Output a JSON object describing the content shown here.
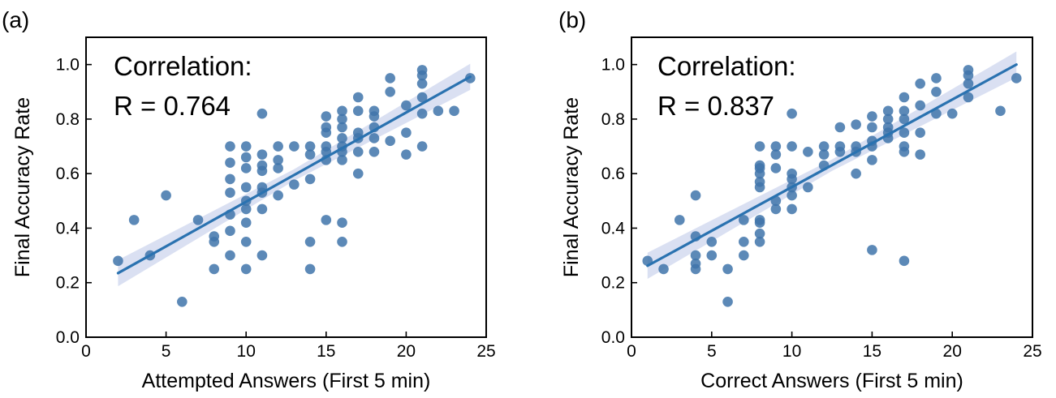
{
  "colors": {
    "point": "#3f74aa",
    "line": "#2a72b0",
    "band": "#cdd6ee",
    "axis": "#000000"
  },
  "chart_data": [
    {
      "type": "scatter",
      "panel_label": "(a)",
      "xlabel": "Attempted Answers (First 5 min)",
      "ylabel": "Final Accuracy Rate",
      "xlim": [
        0,
        25
      ],
      "ylim": [
        0,
        1.1
      ],
      "xticks": [
        0,
        5,
        10,
        15,
        20,
        25
      ],
      "yticks": [
        0.0,
        0.2,
        0.4,
        0.6,
        0.8,
        1.0
      ],
      "xtick_labels": [
        "0",
        "5",
        "10",
        "15",
        "20",
        "25"
      ],
      "ytick_labels": [
        "0.0",
        "0.2",
        "0.4",
        "0.6",
        "0.8",
        "1.0"
      ],
      "annotation": {
        "line1": "Correlation:",
        "line2": "R = 0.764"
      },
      "fit": {
        "x": [
          2,
          24
        ],
        "y": [
          0.235,
          0.955
        ],
        "ci": 0.03
      },
      "points": [
        [
          2,
          0.28
        ],
        [
          3,
          0.43
        ],
        [
          4,
          0.3
        ],
        [
          5,
          0.52
        ],
        [
          6,
          0.13
        ],
        [
          7,
          0.43
        ],
        [
          8,
          0.25
        ],
        [
          8,
          0.35
        ],
        [
          8,
          0.37
        ],
        [
          9,
          0.3
        ],
        [
          9,
          0.39
        ],
        [
          9,
          0.45
        ],
        [
          9,
          0.53
        ],
        [
          9,
          0.58
        ],
        [
          9,
          0.64
        ],
        [
          9,
          0.7
        ],
        [
          10,
          0.25
        ],
        [
          10,
          0.35
        ],
        [
          10,
          0.42
        ],
        [
          10,
          0.47
        ],
        [
          10,
          0.5
        ],
        [
          10,
          0.55
        ],
        [
          10,
          0.62
        ],
        [
          10,
          0.66
        ],
        [
          10,
          0.7
        ],
        [
          11,
          0.3
        ],
        [
          11,
          0.47
        ],
        [
          11,
          0.53
        ],
        [
          11,
          0.55
        ],
        [
          11,
          0.61
        ],
        [
          11,
          0.63
        ],
        [
          11,
          0.67
        ],
        [
          11,
          0.82
        ],
        [
          12,
          0.52
        ],
        [
          12,
          0.62
        ],
        [
          12,
          0.65
        ],
        [
          12,
          0.7
        ],
        [
          13,
          0.56
        ],
        [
          13,
          0.7
        ],
        [
          14,
          0.25
        ],
        [
          14,
          0.35
        ],
        [
          14,
          0.58
        ],
        [
          14,
          0.67
        ],
        [
          14,
          0.7
        ],
        [
          15,
          0.43
        ],
        [
          15,
          0.65
        ],
        [
          15,
          0.68
        ],
        [
          15,
          0.7
        ],
        [
          15,
          0.75
        ],
        [
          15,
          0.77
        ],
        [
          15,
          0.81
        ],
        [
          16,
          0.35
        ],
        [
          16,
          0.42
        ],
        [
          16,
          0.65
        ],
        [
          16,
          0.68
        ],
        [
          16,
          0.7
        ],
        [
          16,
          0.73
        ],
        [
          16,
          0.77
        ],
        [
          16,
          0.8
        ],
        [
          16,
          0.83
        ],
        [
          17,
          0.6
        ],
        [
          17,
          0.68
        ],
        [
          17,
          0.73
        ],
        [
          17,
          0.75
        ],
        [
          17,
          0.83
        ],
        [
          17,
          0.88
        ],
        [
          18,
          0.68
        ],
        [
          18,
          0.73
        ],
        [
          18,
          0.77
        ],
        [
          18,
          0.81
        ],
        [
          18,
          0.83
        ],
        [
          19,
          0.72
        ],
        [
          19,
          0.9
        ],
        [
          19,
          0.95
        ],
        [
          20,
          0.67
        ],
        [
          20,
          0.75
        ],
        [
          20,
          0.85
        ],
        [
          21,
          0.7
        ],
        [
          21,
          0.82
        ],
        [
          21,
          0.88
        ],
        [
          21,
          0.93
        ],
        [
          21,
          0.96
        ],
        [
          21,
          0.98
        ],
        [
          22,
          0.83
        ],
        [
          23,
          0.83
        ],
        [
          24,
          0.95
        ]
      ]
    },
    {
      "type": "scatter",
      "panel_label": "(b)",
      "xlabel": "Correct Answers (First 5 min)",
      "ylabel": "Final Accuracy Rate",
      "xlim": [
        0,
        25
      ],
      "ylim": [
        0,
        1.1
      ],
      "xticks": [
        0,
        5,
        10,
        15,
        20,
        25
      ],
      "yticks": [
        0.0,
        0.2,
        0.4,
        0.6,
        0.8,
        1.0
      ],
      "xtick_labels": [
        "0",
        "5",
        "10",
        "15",
        "20",
        "25"
      ],
      "ytick_labels": [
        "0.0",
        "0.2",
        "0.4",
        "0.6",
        "0.8",
        "1.0"
      ],
      "annotation": {
        "line1": "Correlation:",
        "line2": "R = 0.837"
      },
      "fit": {
        "x": [
          1,
          24
        ],
        "y": [
          0.262,
          1.0
        ],
        "ci": 0.03
      },
      "points": [
        [
          1,
          0.28
        ],
        [
          2,
          0.25
        ],
        [
          3,
          0.43
        ],
        [
          4,
          0.25
        ],
        [
          4,
          0.27
        ],
        [
          4,
          0.3
        ],
        [
          4,
          0.37
        ],
        [
          4,
          0.52
        ],
        [
          5,
          0.3
        ],
        [
          5,
          0.35
        ],
        [
          6,
          0.13
        ],
        [
          6,
          0.25
        ],
        [
          7,
          0.3
        ],
        [
          7,
          0.35
        ],
        [
          7,
          0.43
        ],
        [
          8,
          0.35
        ],
        [
          8,
          0.38
        ],
        [
          8,
          0.42
        ],
        [
          8,
          0.43
        ],
        [
          8,
          0.55
        ],
        [
          8,
          0.57
        ],
        [
          8,
          0.6
        ],
        [
          8,
          0.62
        ],
        [
          8,
          0.63
        ],
        [
          8,
          0.7
        ],
        [
          9,
          0.47
        ],
        [
          9,
          0.5
        ],
        [
          9,
          0.62
        ],
        [
          9,
          0.67
        ],
        [
          9,
          0.7
        ],
        [
          10,
          0.47
        ],
        [
          10,
          0.52
        ],
        [
          10,
          0.55
        ],
        [
          10,
          0.58
        ],
        [
          10,
          0.6
        ],
        [
          10,
          0.7
        ],
        [
          10,
          0.82
        ],
        [
          11,
          0.55
        ],
        [
          11,
          0.68
        ],
        [
          12,
          0.63
        ],
        [
          12,
          0.67
        ],
        [
          12,
          0.7
        ],
        [
          13,
          0.68
        ],
        [
          13,
          0.7
        ],
        [
          13,
          0.77
        ],
        [
          14,
          0.6
        ],
        [
          14,
          0.68
        ],
        [
          14,
          0.7
        ],
        [
          14,
          0.78
        ],
        [
          15,
          0.32
        ],
        [
          15,
          0.65
        ],
        [
          15,
          0.7
        ],
        [
          15,
          0.72
        ],
        [
          15,
          0.77
        ],
        [
          15,
          0.81
        ],
        [
          16,
          0.73
        ],
        [
          16,
          0.75
        ],
        [
          16,
          0.77
        ],
        [
          16,
          0.8
        ],
        [
          16,
          0.83
        ],
        [
          17,
          0.28
        ],
        [
          17,
          0.68
        ],
        [
          17,
          0.7
        ],
        [
          17,
          0.75
        ],
        [
          17,
          0.8
        ],
        [
          17,
          0.83
        ],
        [
          17,
          0.88
        ],
        [
          18,
          0.67
        ],
        [
          18,
          0.75
        ],
        [
          18,
          0.85
        ],
        [
          18,
          0.93
        ],
        [
          19,
          0.82
        ],
        [
          19,
          0.9
        ],
        [
          19,
          0.95
        ],
        [
          20,
          0.82
        ],
        [
          21,
          0.88
        ],
        [
          21,
          0.93
        ],
        [
          21,
          0.96
        ],
        [
          21,
          0.98
        ],
        [
          23,
          0.83
        ],
        [
          24,
          0.95
        ]
      ]
    }
  ]
}
